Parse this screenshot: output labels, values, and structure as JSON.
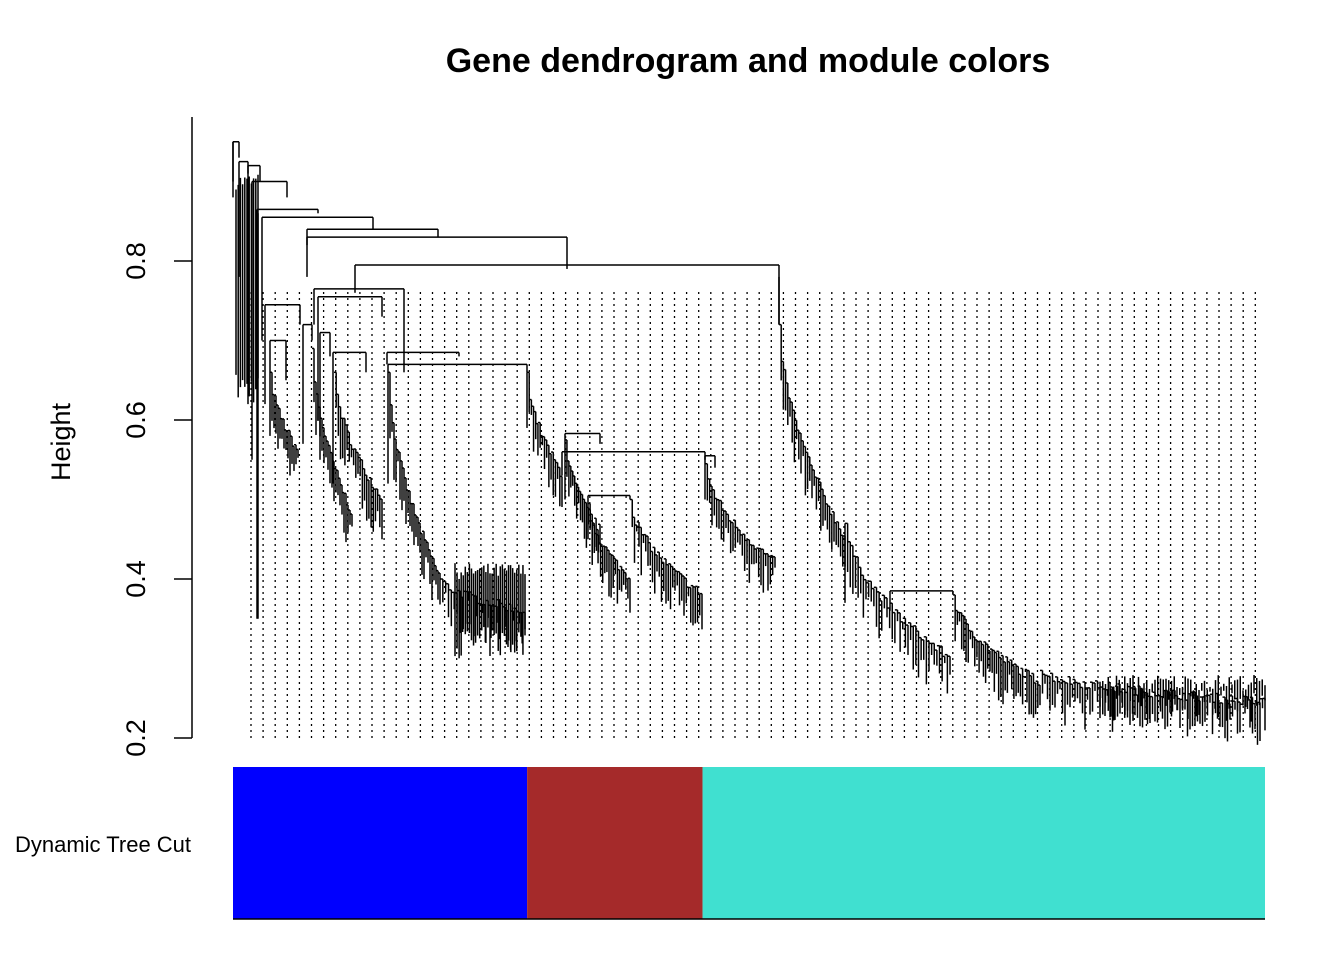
{
  "chart_data": {
    "type": "dendrogram",
    "title": "Gene dendrogram and module colors",
    "ylabel": "Height",
    "ylim": [
      0.2,
      0.96
    ],
    "yticks": [
      "0.2",
      "0.4",
      "0.6",
      "0.8"
    ],
    "ytick_values": [
      0.2,
      0.4,
      0.6,
      0.8
    ],
    "top_merges": [
      {
        "height": 0.95,
        "members": "all genes"
      },
      {
        "height": 0.795,
        "members": "blue + brown vs turquoise"
      },
      {
        "height": 0.765,
        "members": "blue module cluster"
      },
      {
        "height": 0.67,
        "members": "blue-to-brown junction"
      },
      {
        "height": 0.56,
        "members": "brown module cluster"
      },
      {
        "height": 0.385,
        "members": "turquoise sub-branch"
      }
    ],
    "module_colors": {
      "row_label": "Dynamic Tree Cut",
      "segments": [
        {
          "module": "blue",
          "color": "#0000FF",
          "start_frac": 0.0,
          "end_frac": 0.285
        },
        {
          "module": "brown",
          "color": "#A52A2A",
          "start_frac": 0.285,
          "end_frac": 0.455
        },
        {
          "module": "turquoise",
          "color": "#40E0D0",
          "start_frac": 0.455,
          "end_frac": 1.0
        }
      ]
    }
  }
}
